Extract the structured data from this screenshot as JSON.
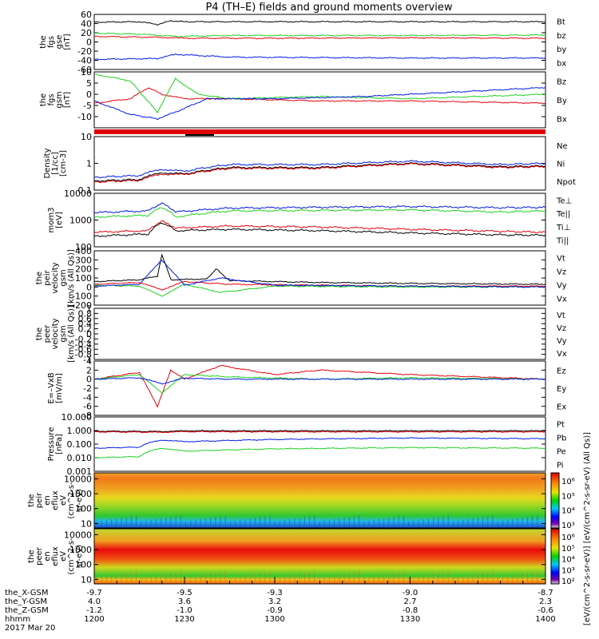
{
  "title": "P4 (TH–E) fields and ground moments overview",
  "colors": {
    "black": "#000000",
    "red": "#e8000b",
    "green": "#1ed01e",
    "blue": "#0018e0"
  },
  "chart_data": [
    {
      "type": "line",
      "panel": "fgs-gse",
      "ylabel": [
        "the",
        "fgs",
        "gse",
        "[nT]"
      ],
      "ylim": [
        -60,
        60
      ],
      "yticks": [
        60,
        40,
        20,
        0,
        -20,
        -40,
        -60
      ],
      "legend": [
        {
          "name": "Bt",
          "color": "black"
        },
        {
          "name": "bz",
          "color": "red"
        },
        {
          "name": "by",
          "color": "green"
        },
        {
          "name": "bx",
          "color": "blue"
        }
      ],
      "series": [
        {
          "name": "Bt",
          "color": "black",
          "x": [
            -9.7,
            -9.6,
            -9.56,
            -9.53,
            -9.5,
            -9.4,
            -9.2,
            -9.0,
            -8.7
          ],
          "y": [
            43,
            44,
            38,
            46,
            44,
            44,
            44,
            44,
            44
          ]
        },
        {
          "name": "bz",
          "color": "red",
          "x": [
            -9.7,
            -9.55,
            -9.5,
            -9.3,
            -9.0,
            -8.7
          ],
          "y": [
            12,
            10,
            8,
            8,
            9,
            8
          ]
        },
        {
          "name": "by",
          "color": "green",
          "x": [
            -9.7,
            -9.6,
            -9.52,
            -9.4,
            -9.0,
            -8.7
          ],
          "y": [
            19,
            17,
            12,
            14,
            14,
            15
          ]
        },
        {
          "name": "bx",
          "color": "blue",
          "x": [
            -9.7,
            -9.56,
            -9.52,
            -9.4,
            -9.0,
            -8.7
          ],
          "y": [
            -38,
            -36,
            -27,
            -33,
            -35,
            -35
          ]
        }
      ]
    },
    {
      "type": "line",
      "panel": "fgs-gsm",
      "ylabel": [
        "the",
        "fgs",
        "gsm",
        "[nT]"
      ],
      "ylim": [
        -15,
        10
      ],
      "yticks": [
        10,
        5,
        0,
        -5,
        -10
      ],
      "legend": [
        {
          "name": "Bz",
          "color": "red"
        },
        {
          "name": "By",
          "color": "green"
        },
        {
          "name": "Bx",
          "color": "blue"
        }
      ],
      "series": [
        {
          "name": "Bz",
          "color": "red",
          "x": [
            -9.7,
            -9.62,
            -9.58,
            -9.55,
            -9.5,
            -9.4,
            -9.2,
            -9.0,
            -8.7
          ],
          "y": [
            -4,
            -2,
            3,
            0,
            -2,
            -2,
            -3,
            -3,
            -4
          ]
        },
        {
          "name": "By",
          "color": "green",
          "x": [
            -9.7,
            -9.62,
            -9.56,
            -9.52,
            -9.47,
            -9.4,
            -9.2,
            -9.0,
            -8.7
          ],
          "y": [
            9,
            6,
            -8,
            7,
            0,
            -2,
            -1,
            -2,
            0
          ]
        },
        {
          "name": "Bx",
          "color": "blue",
          "x": [
            -9.7,
            -9.62,
            -9.56,
            -9.52,
            -9.45,
            -9.3,
            -9.1,
            -9.0,
            -8.7
          ],
          "y": [
            -3,
            -9,
            -11,
            -8,
            -2,
            -2,
            -1,
            0,
            3
          ]
        }
      ]
    },
    {
      "type": "line",
      "panel": "density",
      "ylabel": [
        "Density",
        "[1/cc]",
        "[cm-3]"
      ],
      "log": true,
      "ylim": [
        0.1,
        10
      ],
      "yticks": [
        10.0,
        1.0,
        0.1
      ],
      "legend": [
        {
          "name": "Ne",
          "color": "red"
        },
        {
          "name": "Ni",
          "color": "black"
        },
        {
          "name": "Npot",
          "color": "blue"
        }
      ],
      "series": [
        {
          "name": "Npot",
          "color": "blue",
          "x": [
            -9.7,
            -9.6,
            -9.55,
            -9.5,
            -9.4,
            -9.2,
            -9.0,
            -8.8,
            -8.7
          ],
          "y": [
            0.3,
            0.35,
            0.6,
            0.5,
            0.9,
            0.9,
            1.2,
            0.9,
            1.0
          ]
        },
        {
          "name": "Ni",
          "color": "black",
          "x": [
            -9.7,
            -9.6,
            -9.55,
            -9.5,
            -9.4,
            -9.2,
            -9.0,
            -8.8,
            -8.7
          ],
          "y": [
            0.22,
            0.25,
            0.45,
            0.4,
            0.7,
            0.7,
            1.0,
            0.75,
            0.8
          ]
        },
        {
          "name": "Ne",
          "color": "red",
          "x": [
            -9.7,
            -9.6,
            -9.55,
            -9.5,
            -9.4,
            -9.2,
            -9.0,
            -8.8,
            -8.7
          ],
          "y": [
            0.2,
            0.23,
            0.4,
            0.38,
            0.65,
            0.65,
            0.95,
            0.7,
            0.75
          ]
        }
      ]
    },
    {
      "type": "line",
      "panel": "temperature",
      "ylabel": [
        "mom3",
        "[eV]"
      ],
      "log": true,
      "ylim": [
        100,
        10000
      ],
      "yticks": [
        10000,
        1000,
        100
      ],
      "legend": [
        {
          "name": "Te⊥",
          "color": "red"
        },
        {
          "name": "Te||",
          "color": "black"
        },
        {
          "name": "Ti⊥",
          "color": "blue"
        },
        {
          "name": "Ti||",
          "color": "green"
        }
      ],
      "series": [
        {
          "name": "Ti⊥",
          "color": "blue",
          "x": [
            -9.7,
            -9.58,
            -9.55,
            -9.52,
            -9.4,
            -9.2,
            -9.0,
            -8.8,
            -8.7
          ],
          "y": [
            1900,
            2200,
            4200,
            2000,
            2800,
            3000,
            3200,
            2900,
            3000
          ]
        },
        {
          "name": "Ti||",
          "color": "green",
          "x": [
            -9.7,
            -9.58,
            -9.55,
            -9.52,
            -9.4,
            -9.2,
            -9.0,
            -8.8,
            -8.7
          ],
          "y": [
            1300,
            1500,
            3000,
            1300,
            2200,
            2300,
            2400,
            2000,
            2200
          ]
        },
        {
          "name": "Te⊥",
          "color": "red",
          "x": [
            -9.7,
            -9.58,
            -9.55,
            -9.52,
            -9.4,
            -9.2,
            -9.0,
            -8.8,
            -8.7
          ],
          "y": [
            350,
            400,
            900,
            500,
            600,
            550,
            450,
            380,
            350
          ]
        },
        {
          "name": "Te||",
          "color": "black",
          "x": [
            -9.7,
            -9.58,
            -9.55,
            -9.52,
            -9.4,
            -9.2,
            -9.0,
            -8.8,
            -8.7
          ],
          "y": [
            250,
            300,
            800,
            400,
            450,
            400,
            330,
            280,
            270
          ]
        }
      ]
    },
    {
      "type": "line",
      "panel": "velocity-gsm",
      "ylabel": [
        "the",
        "peir",
        "velocity",
        "gsm",
        "[km/s (All Qs)]"
      ],
      "ylim": [
        -200,
        400
      ],
      "yticks": [
        400,
        300,
        200,
        100,
        0,
        -100,
        -200
      ],
      "legend": [
        {
          "name": "Vt",
          "color": "black"
        },
        {
          "name": "Vz",
          "color": "red"
        },
        {
          "name": "Vy",
          "color": "green"
        },
        {
          "name": "Vx",
          "color": "blue"
        }
      ],
      "series": [
        {
          "name": "Vt",
          "color": "black",
          "x": [
            -9.7,
            -9.6,
            -9.56,
            -9.55,
            -9.53,
            -9.45,
            -9.43,
            -9.4,
            -9.2,
            -9.0,
            -8.7
          ],
          "y": [
            60,
            80,
            120,
            360,
            80,
            90,
            200,
            70,
            50,
            40,
            30
          ]
        },
        {
          "name": "Vz",
          "color": "red",
          "x": [
            -9.7,
            -9.6,
            -9.55,
            -9.5,
            -9.4,
            -9.2,
            -9.0,
            -8.7
          ],
          "y": [
            30,
            50,
            -30,
            60,
            30,
            20,
            10,
            10
          ]
        },
        {
          "name": "Vy",
          "color": "green",
          "x": [
            -9.7,
            -9.6,
            -9.55,
            -9.5,
            -9.42,
            -9.3,
            -9.0,
            -8.7
          ],
          "y": [
            20,
            10,
            -100,
            30,
            -60,
            10,
            0,
            0
          ]
        },
        {
          "name": "Vx",
          "color": "blue",
          "x": [
            -9.7,
            -9.6,
            -9.55,
            -9.5,
            -9.42,
            -9.3,
            -9.0,
            -8.7
          ],
          "y": [
            10,
            30,
            300,
            20,
            100,
            20,
            10,
            0
          ]
        }
      ]
    },
    {
      "type": "line",
      "panel": "velocity-gsm-empty",
      "ylabel": [
        "the",
        "peer",
        "velocity",
        "gsm",
        "[km/s (All Qs)]"
      ],
      "ylim": [
        -1.0,
        1.0
      ],
      "yticks": [
        1.0,
        0.8,
        0.6,
        0.4,
        0.2,
        0.0,
        -0.2,
        -0.4,
        -0.6,
        -0.8,
        -1.0
      ],
      "legend": [
        {
          "name": "Vt",
          "color": "black"
        },
        {
          "name": "Vz",
          "color": "red"
        },
        {
          "name": "Vy",
          "color": "green"
        },
        {
          "name": "Vx",
          "color": "blue"
        }
      ],
      "series": []
    },
    {
      "type": "line",
      "panel": "efield",
      "ylabel": [
        "E=–VxB",
        "[mV/m]"
      ],
      "ylim": [
        -8,
        4
      ],
      "yticks": [
        4,
        2,
        0,
        -2,
        -4,
        -6,
        -8
      ],
      "legend": [
        {
          "name": "Ez",
          "color": "red"
        },
        {
          "name": "Ey",
          "color": "green"
        },
        {
          "name": "Ex",
          "color": "blue"
        }
      ],
      "series": [
        {
          "name": "Ez",
          "color": "red",
          "x": [
            -9.7,
            -9.6,
            -9.56,
            -9.53,
            -9.5,
            -9.42,
            -9.3,
            -9.2,
            -9.0,
            -8.7
          ],
          "y": [
            0,
            1.5,
            -6,
            2,
            0,
            3,
            1,
            2,
            1,
            0
          ]
        },
        {
          "name": "Ey",
          "color": "green",
          "x": [
            -9.7,
            -9.6,
            -9.55,
            -9.5,
            -9.4,
            -9.2,
            -9.0,
            -8.7
          ],
          "y": [
            0,
            1,
            -3,
            1,
            0.5,
            0,
            0.3,
            0
          ]
        },
        {
          "name": "Ex",
          "color": "blue",
          "x": [
            -9.7,
            -9.6,
            -9.55,
            -9.5,
            -9.4,
            -9.2,
            -9.0,
            -8.7
          ],
          "y": [
            0,
            0.3,
            -1,
            0.2,
            0,
            0,
            0,
            0
          ]
        }
      ]
    },
    {
      "type": "line",
      "panel": "pressure",
      "ylabel": [
        "Pressure",
        "[nPa]"
      ],
      "log": true,
      "ylim": [
        0.001,
        10
      ],
      "yticks": [
        10.0,
        1.0,
        0.1,
        0.01,
        0.001
      ],
      "ytick_labels": [
        "10.000",
        "1.000",
        "0.100",
        "0.010",
        "0.001"
      ],
      "legend": [
        {
          "name": "Pt",
          "color": "black"
        },
        {
          "name": "Pb",
          "color": "red"
        },
        {
          "name": "Pe",
          "color": "green"
        },
        {
          "name": "Pi",
          "color": "blue"
        }
      ],
      "series": [
        {
          "name": "Pt",
          "color": "black",
          "x": [
            -9.7,
            -9.55,
            -9.5,
            -9.2,
            -8.7
          ],
          "y": [
            0.9,
            0.85,
            0.95,
            0.95,
            0.95
          ]
        },
        {
          "name": "Pb",
          "color": "red",
          "x": [
            -9.7,
            -9.55,
            -9.5,
            -9.2,
            -8.7
          ],
          "y": [
            0.8,
            0.75,
            0.82,
            0.8,
            0.8
          ]
        },
        {
          "name": "Pi",
          "color": "blue",
          "x": [
            -9.7,
            -9.6,
            -9.55,
            -9.5,
            -9.3,
            -9.0,
            -8.7
          ],
          "y": [
            0.05,
            0.06,
            0.2,
            0.15,
            0.22,
            0.28,
            0.25
          ]
        },
        {
          "name": "Pe",
          "color": "green",
          "x": [
            -9.7,
            -9.6,
            -9.55,
            -9.5,
            -9.3,
            -9.0,
            -8.7
          ],
          "y": [
            0.01,
            0.012,
            0.05,
            0.03,
            0.045,
            0.055,
            0.05
          ]
        }
      ]
    },
    {
      "type": "heatmap",
      "panel": "peir-spectrogram",
      "ylabel": [
        "the",
        "peir",
        "en",
        "eflux",
        "eV",
        "(cm^2-s-",
        "sr-eV)"
      ],
      "log": true,
      "ylim": [
        5,
        25000
      ],
      "yticks": [
        10000,
        1000,
        100,
        10
      ],
      "description_bands": [
        {
          "ylim": [
            8,
            30
          ],
          "level": "blue-cyan"
        },
        {
          "ylim": [
            30,
            300
          ],
          "level": "green"
        },
        {
          "ylim": [
            300,
            1500
          ],
          "level": "yellow"
        },
        {
          "ylim": [
            1500,
            25000
          ],
          "level": "orange"
        }
      ]
    },
    {
      "type": "heatmap",
      "panel": "peer-spectrogram",
      "ylabel": [
        "the",
        "peer",
        "en",
        "eflux",
        "eV",
        "(cm^2-s-",
        "sr-eV)"
      ],
      "log": true,
      "ylim": [
        5,
        25000
      ],
      "yticks": [
        10000,
        1000,
        100,
        10
      ],
      "description_bands": [
        {
          "ylim": [
            5,
            12
          ],
          "level": "orange"
        },
        {
          "ylim": [
            12,
            60
          ],
          "level": "green"
        },
        {
          "ylim": [
            60,
            3000
          ],
          "level": "red"
        },
        {
          "ylim": [
            3000,
            25000
          ],
          "level": "yellow-green"
        }
      ]
    }
  ],
  "colorbars": [
    {
      "ticks": [
        "10⁶",
        "10⁵",
        "10⁴",
        "10³"
      ]
    },
    {
      "ticks": [
        "10⁶",
        "10⁵",
        "10⁴",
        "10³",
        "10²"
      ]
    }
  ],
  "colorbar_label": "[eV/(cm^2-s-sr-eV)] [eV/(cm^2-s-sr-eV) (All Qs)]",
  "x_axis": {
    "xlim": [
      -9.7,
      -8.7
    ],
    "major_ticks": [
      -9.7,
      -9.5,
      -9.3,
      -9.0,
      -8.7
    ],
    "rows": [
      {
        "label": "the_X-GSM",
        "values": [
          "-9.7",
          "-9.5",
          "-9.3",
          "-9.0",
          "-8.7"
        ]
      },
      {
        "label": "the_Y-GSM",
        "values": [
          "4.0",
          "3.6",
          "3.2",
          "2.7",
          "2.3"
        ]
      },
      {
        "label": "the_Z-GSM",
        "values": [
          "-1.2",
          "-1.0",
          "-0.9",
          "-0.8",
          "-0.6"
        ]
      },
      {
        "label": "hhmm",
        "values": [
          "1200",
          "1230",
          "1300",
          "1330",
          "1400"
        ]
      }
    ],
    "date": "2017 Mar 20"
  }
}
